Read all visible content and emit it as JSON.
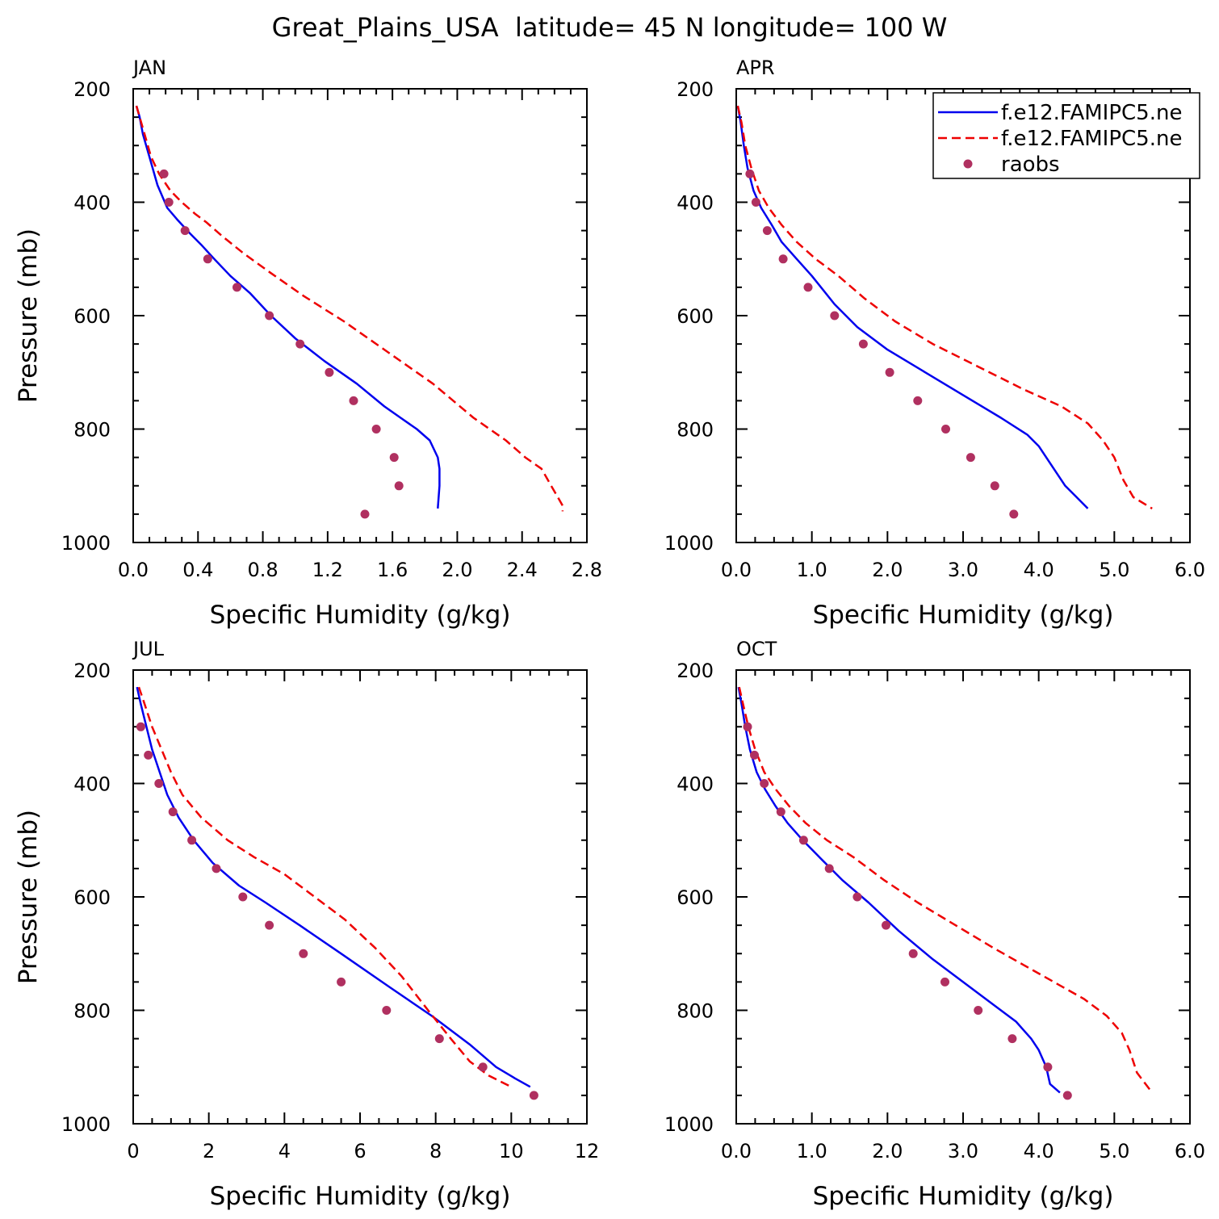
{
  "title": "Great_Plains_USA  latitude= 45 N longitude= 100 W",
  "colors": {
    "model1": "#0000ee",
    "model2": "#ee0000",
    "raobs": "#b03060"
  },
  "legend": {
    "placement": "top-right of APR panel",
    "entries": [
      "f.e12.FAMIPC5.ne",
      "f.e12.FAMIPC5.ne",
      "raobs"
    ]
  },
  "chart_data": [
    {
      "type": "line",
      "panel_label": "JAN",
      "xlabel": "Specific Humidity (g/kg)",
      "ylabel": "Pressure (mb)",
      "xlim": [
        0,
        2.8
      ],
      "ylim": [
        1000,
        200
      ],
      "xticks": [
        "0.0",
        "0.4",
        "0.8",
        "1.2",
        "1.6",
        "2.0",
        "2.4",
        "2.8"
      ],
      "yticks": [
        "200",
        "400",
        "600",
        "800",
        "1000"
      ],
      "series": [
        {
          "name": "f.e12.FAMIPC5.ne",
          "style": "solid",
          "x": [
            0.02,
            0.04,
            0.06,
            0.1,
            0.15,
            0.21,
            0.27,
            0.35,
            0.42,
            0.5,
            0.6,
            0.72,
            0.85,
            1.0,
            1.18,
            1.38,
            1.55,
            1.65,
            1.75,
            1.83,
            1.88,
            1.89,
            1.89,
            1.88
          ],
          "y": [
            230,
            250,
            280,
            320,
            370,
            410,
            430,
            455,
            475,
            500,
            530,
            560,
            600,
            640,
            680,
            720,
            760,
            780,
            800,
            820,
            850,
            870,
            900,
            940
          ]
        },
        {
          "name": "f.e12.FAMIPC5.ne",
          "style": "dashed",
          "x": [
            0.02,
            0.04,
            0.07,
            0.11,
            0.16,
            0.23,
            0.3,
            0.38,
            0.45,
            0.55,
            0.68,
            0.85,
            1.05,
            1.3,
            1.55,
            1.85,
            2.1,
            2.3,
            2.42,
            2.52,
            2.58,
            2.63,
            2.65,
            2.65
          ],
          "y": [
            230,
            250,
            280,
            320,
            350,
            380,
            400,
            420,
            435,
            460,
            490,
            525,
            565,
            610,
            660,
            720,
            780,
            820,
            850,
            870,
            900,
            925,
            935,
            945
          ]
        }
      ],
      "points": {
        "name": "raobs",
        "x": [
          0.19,
          0.22,
          0.32,
          0.46,
          0.64,
          0.84,
          1.03,
          1.21,
          1.36,
          1.5,
          1.61,
          1.64,
          1.43
        ],
        "y": [
          350,
          400,
          450,
          500,
          550,
          600,
          650,
          700,
          750,
          800,
          850,
          900,
          950
        ]
      }
    },
    {
      "type": "line",
      "panel_label": "APR",
      "xlabel": "Specific Humidity (g/kg)",
      "ylabel": "",
      "xlim": [
        0,
        6
      ],
      "ylim": [
        1000,
        200
      ],
      "xticks": [
        "0.0",
        "1.0",
        "2.0",
        "3.0",
        "4.0",
        "5.0",
        "6.0"
      ],
      "yticks": [
        "200",
        "400",
        "600",
        "800",
        "1000"
      ],
      "series": [
        {
          "name": "f.e12.FAMIPC5.ne",
          "style": "solid",
          "x": [
            0.02,
            0.06,
            0.1,
            0.15,
            0.23,
            0.33,
            0.47,
            0.6,
            0.8,
            1.0,
            1.3,
            1.6,
            2.0,
            2.5,
            3.0,
            3.5,
            3.85,
            4.0,
            4.2,
            4.35,
            4.5,
            4.65
          ],
          "y": [
            230,
            260,
            300,
            340,
            380,
            410,
            440,
            470,
            500,
            530,
            580,
            620,
            660,
            700,
            740,
            780,
            810,
            830,
            870,
            900,
            920,
            940
          ]
        },
        {
          "name": "f.e12.FAMIPC5.ne",
          "style": "dashed",
          "x": [
            0.02,
            0.07,
            0.12,
            0.2,
            0.3,
            0.43,
            0.6,
            0.8,
            1.05,
            1.35,
            1.7,
            2.1,
            2.6,
            3.2,
            3.8,
            4.3,
            4.65,
            4.85,
            5.0,
            5.12,
            5.25,
            5.5
          ],
          "y": [
            230,
            260,
            300,
            340,
            380,
            410,
            440,
            470,
            500,
            530,
            570,
            610,
            650,
            690,
            730,
            760,
            790,
            820,
            850,
            890,
            920,
            940
          ]
        }
      ],
      "points": {
        "name": "raobs",
        "x": [
          0.18,
          0.26,
          0.41,
          0.62,
          0.95,
          1.3,
          1.68,
          2.03,
          2.4,
          2.77,
          3.1,
          3.42,
          3.67
        ],
        "y": [
          350,
          400,
          450,
          500,
          550,
          600,
          650,
          700,
          750,
          800,
          850,
          900,
          950
        ]
      }
    },
    {
      "type": "line",
      "panel_label": "JUL",
      "xlabel": "Specific Humidity (g/kg)",
      "ylabel": "Pressure (mb)",
      "xlim": [
        0,
        12
      ],
      "ylim": [
        1000,
        200
      ],
      "xticks": [
        "0",
        "2",
        "4",
        "6",
        "8",
        "10",
        "12"
      ],
      "yticks": [
        "200",
        "400",
        "600",
        "800",
        "1000"
      ],
      "series": [
        {
          "name": "f.e12.FAMIPC5.ne",
          "style": "solid",
          "x": [
            0.1,
            0.2,
            0.35,
            0.5,
            0.7,
            0.9,
            1.2,
            1.6,
            2.1,
            2.8,
            3.5,
            4.4,
            5.5,
            6.8,
            7.9,
            8.9,
            9.6,
            10.1,
            10.5
          ],
          "y": [
            230,
            260,
            300,
            340,
            380,
            420,
            460,
            500,
            540,
            580,
            610,
            650,
            700,
            760,
            810,
            860,
            900,
            920,
            935
          ]
        },
        {
          "name": "f.e12.FAMIPC5.ne",
          "style": "dashed",
          "x": [
            0.15,
            0.3,
            0.5,
            0.75,
            1.0,
            1.3,
            1.8,
            2.5,
            3.2,
            4.0,
            4.8,
            5.6,
            6.4,
            7.1,
            7.8,
            8.4,
            8.9,
            9.4,
            10.0
          ],
          "y": [
            230,
            260,
            300,
            340,
            380,
            420,
            460,
            500,
            530,
            560,
            600,
            640,
            690,
            740,
            800,
            850,
            890,
            915,
            935
          ]
        }
      ],
      "points": {
        "name": "raobs",
        "x": [
          0.2,
          0.4,
          0.68,
          1.05,
          1.55,
          2.2,
          2.9,
          3.6,
          4.5,
          5.5,
          6.7,
          8.1,
          9.25,
          10.6
        ],
        "y": [
          300,
          350,
          400,
          450,
          500,
          550,
          600,
          650,
          700,
          750,
          800,
          850,
          900,
          950
        ]
      }
    },
    {
      "type": "line",
      "panel_label": "OCT",
      "xlabel": "Specific Humidity (g/kg)",
      "ylabel": "",
      "xlim": [
        0,
        6
      ],
      "ylim": [
        1000,
        200
      ],
      "xticks": [
        "0.0",
        "1.0",
        "2.0",
        "3.0",
        "4.0",
        "5.0",
        "6.0"
      ],
      "yticks": [
        "200",
        "400",
        "600",
        "800",
        "1000"
      ],
      "series": [
        {
          "name": "f.e12.FAMIPC5.ne",
          "style": "solid",
          "x": [
            0.03,
            0.07,
            0.12,
            0.18,
            0.27,
            0.38,
            0.52,
            0.68,
            0.88,
            1.1,
            1.4,
            1.75,
            2.15,
            2.6,
            3.0,
            3.4,
            3.7,
            3.9,
            4.0,
            4.1,
            4.15,
            4.28
          ],
          "y": [
            230,
            260,
            300,
            340,
            380,
            410,
            440,
            470,
            500,
            530,
            570,
            610,
            660,
            710,
            750,
            790,
            820,
            850,
            870,
            900,
            930,
            945
          ]
        },
        {
          "name": "f.e12.FAMIPC5.ne",
          "style": "dashed",
          "x": [
            0.04,
            0.09,
            0.16,
            0.25,
            0.37,
            0.52,
            0.7,
            0.92,
            1.2,
            1.55,
            1.95,
            2.4,
            2.9,
            3.4,
            3.8,
            4.2,
            4.6,
            4.9,
            5.1,
            5.2,
            5.3,
            5.47
          ],
          "y": [
            230,
            260,
            300,
            340,
            380,
            410,
            440,
            470,
            500,
            530,
            570,
            610,
            650,
            690,
            720,
            750,
            780,
            810,
            840,
            870,
            910,
            940
          ]
        }
      ],
      "points": {
        "name": "raobs",
        "x": [
          0.15,
          0.24,
          0.37,
          0.59,
          0.89,
          1.23,
          1.6,
          1.98,
          2.34,
          2.76,
          3.2,
          3.65,
          4.12,
          4.38
        ],
        "y": [
          300,
          350,
          400,
          450,
          500,
          550,
          600,
          650,
          700,
          750,
          800,
          850,
          900,
          950
        ]
      }
    }
  ]
}
